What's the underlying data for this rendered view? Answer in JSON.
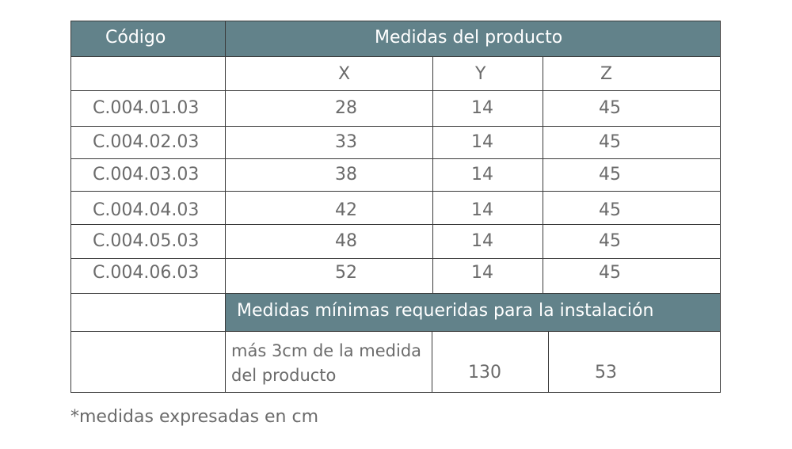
{
  "table": {
    "header": {
      "code_label": "Código",
      "product_measures_label": "Medidas del producto"
    },
    "axes": {
      "x": "X",
      "y": "Y",
      "z": "Z"
    },
    "rows": [
      {
        "code": "C.004.01.03",
        "x": "28",
        "y": "14",
        "z": "45"
      },
      {
        "code": "C.004.02.03",
        "x": "33",
        "y": "14",
        "z": "45"
      },
      {
        "code": "C.004.03.03",
        "x": "38",
        "y": "14",
        "z": "45"
      },
      {
        "code": "C.004.04.03",
        "x": "42",
        "y": "14",
        "z": "45"
      },
      {
        "code": "C.004.05.03",
        "x": "48",
        "y": "14",
        "z": "45"
      },
      {
        "code": "C.004.06.03",
        "x": "52",
        "y": "14",
        "z": "45"
      }
    ],
    "installation": {
      "title": "Medidas mínimas requeridas para la instalación",
      "x_text": "más 3cm de la medida del producto",
      "y_value": "130",
      "z_value": "53"
    }
  },
  "footnote": "*medidas expresadas en cm",
  "colors": {
    "header_bg": "#62828a",
    "header_text": "#ffffff",
    "body_text": "#6b6b6b",
    "border": "#3a3a3a"
  }
}
